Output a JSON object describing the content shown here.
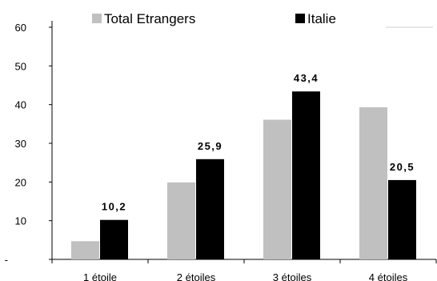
{
  "chart_data": {
    "type": "bar",
    "categories": [
      "1 étoile",
      "2 étoiles",
      "3 étoiles",
      "4 étoiles"
    ],
    "series": [
      {
        "name": "Total Etrangers",
        "values": [
          4.7,
          19.9,
          36.1,
          39.3
        ],
        "color": "#c0c0c0"
      },
      {
        "name": "Italie",
        "values": [
          10.2,
          25.9,
          43.4,
          20.5
        ],
        "color": "#000000"
      }
    ],
    "data_labels": [
      "10,2",
      "25,9",
      "43,4",
      "20,5"
    ],
    "y_ticks": [
      "-",
      "10",
      "20",
      "30",
      "40",
      "50",
      "60"
    ],
    "ylim": [
      0,
      60
    ],
    "legend_position": "top",
    "grid": false
  }
}
